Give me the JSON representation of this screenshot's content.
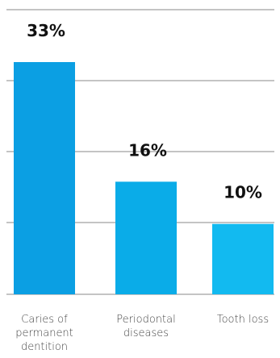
{
  "chart_data": {
    "type": "bar",
    "categories": [
      [
        "Caries of",
        "permanent",
        "dentition"
      ],
      [
        "Periodontal",
        "diseases"
      ],
      [
        "Tooth loss"
      ]
    ],
    "values": [
      33,
      16,
      10
    ],
    "value_labels": [
      "33%",
      "16%",
      "10%"
    ],
    "ylim": [
      0,
      40
    ],
    "grid": true,
    "bar_colors": [
      "#0b9fe3",
      "#0aace8",
      "#12baf0"
    ],
    "title": "",
    "xlabel": "",
    "ylabel": ""
  }
}
